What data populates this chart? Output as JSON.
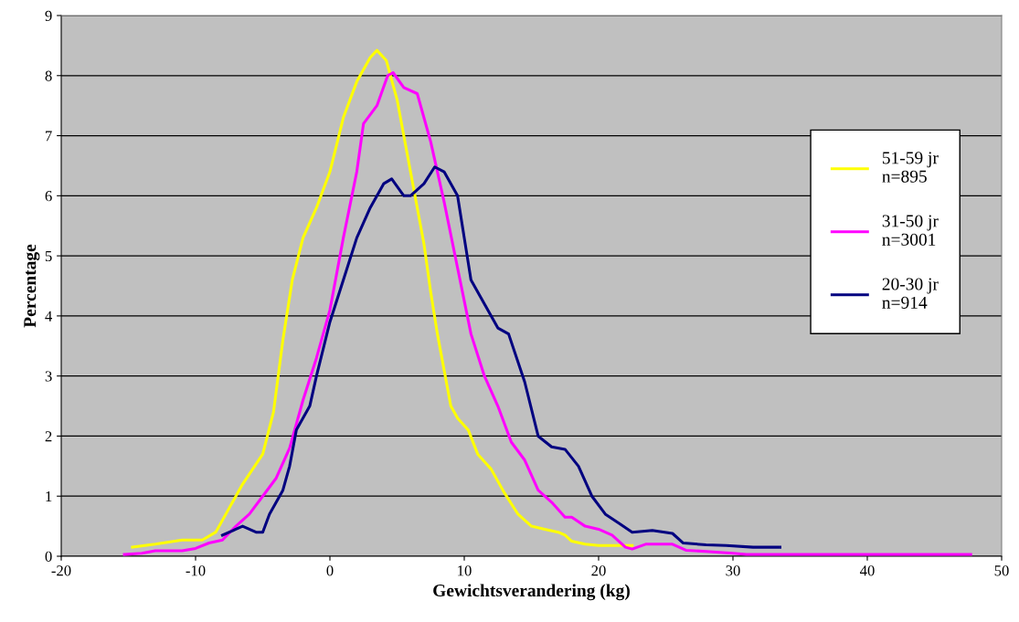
{
  "chart_data": {
    "type": "line",
    "xlabel": "Gewichtsverandering (kg)",
    "ylabel": "Percentage",
    "xlim": [
      -20,
      50
    ],
    "xticks": [
      -20,
      -10,
      0,
      10,
      20,
      30,
      40,
      50
    ],
    "ylim": [
      0,
      9
    ],
    "yticks": [
      0,
      1,
      2,
      3,
      4,
      5,
      6,
      7,
      8,
      9
    ],
    "grid": "y",
    "legend": "right",
    "marker": "none",
    "line_style": "solid",
    "series": [
      {
        "name": "51-59 jr\nn=895",
        "color": "#ffff00",
        "x": [
          -14.7,
          -13,
          -11,
          -9.5,
          -8.5,
          -7.5,
          -6.5,
          -5,
          -4.2,
          -3.5,
          -2.8,
          -2,
          -1,
          0,
          1,
          2,
          3,
          3.5,
          4.2,
          5,
          6,
          7,
          7.5,
          8,
          9,
          9.5,
          10.3,
          11,
          12,
          13,
          14,
          15,
          16,
          17,
          17.5,
          18,
          19,
          20,
          22,
          22.5
        ],
        "values": [
          0.15,
          0.2,
          0.27,
          0.27,
          0.4,
          0.8,
          1.2,
          1.7,
          2.4,
          3.6,
          4.6,
          5.3,
          5.8,
          6.4,
          7.3,
          7.9,
          8.3,
          8.42,
          8.25,
          7.6,
          6.4,
          5.2,
          4.4,
          3.7,
          2.5,
          2.3,
          2.1,
          1.7,
          1.45,
          1.05,
          0.7,
          0.5,
          0.45,
          0.4,
          0.35,
          0.25,
          0.2,
          0.18,
          0.18,
          0.18
        ]
      },
      {
        "name": "31-50 jr\nn=3001",
        "color": "#ff00ff",
        "x": [
          -15.3,
          -14,
          -13,
          -11,
          -10,
          -9,
          -8,
          -7,
          -6,
          -5,
          -4,
          -3,
          -2,
          -1,
          0,
          1,
          2,
          2.5,
          3.5,
          4.3,
          4.7,
          5.5,
          6.5,
          7.5,
          8.5,
          9.5,
          10.5,
          11.5,
          12.5,
          13.5,
          14.5,
          15.5,
          16.5,
          17.5,
          18,
          19,
          20,
          21,
          22,
          22.5,
          23.5,
          25.5,
          26.5,
          28,
          30,
          31,
          35,
          47.7
        ],
        "values": [
          0.03,
          0.05,
          0.09,
          0.09,
          0.13,
          0.22,
          0.27,
          0.5,
          0.7,
          1.0,
          1.3,
          1.8,
          2.6,
          3.3,
          4.1,
          5.3,
          6.4,
          7.2,
          7.5,
          8.0,
          8.05,
          7.8,
          7.7,
          6.9,
          5.9,
          4.8,
          3.7,
          3.0,
          2.5,
          1.9,
          1.6,
          1.1,
          0.9,
          0.65,
          0.65,
          0.5,
          0.45,
          0.35,
          0.15,
          0.12,
          0.2,
          0.2,
          0.1,
          0.08,
          0.05,
          0.03,
          0.03,
          0.03
        ]
      },
      {
        "name": "20-30 jr\nn=914",
        "color": "#000080",
        "x": [
          -8,
          -7,
          -6.5,
          -5.5,
          -5,
          -4.5,
          -3.5,
          -3,
          -2.5,
          -1.5,
          -1,
          0,
          1,
          2,
          3,
          4,
          4.6,
          5.5,
          6,
          7,
          7.8,
          8.5,
          9.5,
          10,
          10.5,
          11.5,
          12.5,
          13.3,
          14.5,
          15.5,
          16.5,
          17.5,
          18.5,
          19.5,
          20.5,
          21.5,
          22.5,
          24,
          25.5,
          26.3,
          28,
          29.5,
          31.5,
          33.5
        ],
        "values": [
          0.35,
          0.45,
          0.5,
          0.4,
          0.4,
          0.7,
          1.1,
          1.5,
          2.1,
          2.5,
          3.0,
          3.9,
          4.6,
          5.3,
          5.8,
          6.2,
          6.28,
          6.0,
          6.0,
          6.2,
          6.48,
          6.4,
          6.0,
          5.3,
          4.6,
          4.2,
          3.8,
          3.7,
          2.9,
          2.0,
          1.82,
          1.78,
          1.5,
          1.0,
          0.7,
          0.55,
          0.4,
          0.43,
          0.38,
          0.22,
          0.19,
          0.18,
          0.15,
          0.15
        ]
      }
    ]
  }
}
